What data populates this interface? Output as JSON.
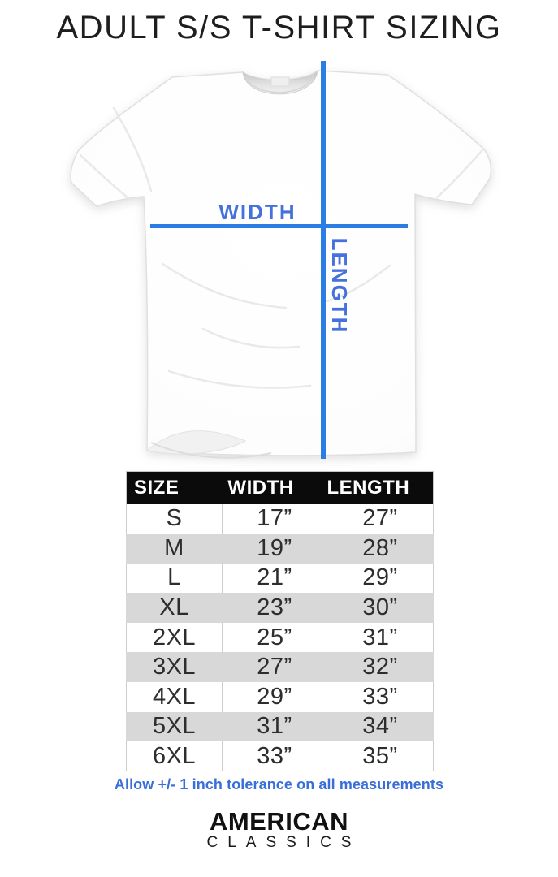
{
  "title": "ADULT S/S T-SHIRT SIZING",
  "diagram": {
    "width_label": "WIDTH",
    "length_label": "LENGTH"
  },
  "table": {
    "headers": [
      "SIZE",
      "WIDTH",
      "LENGTH"
    ],
    "rows": [
      [
        "S",
        "17”",
        "27”"
      ],
      [
        "M",
        "19”",
        "28”"
      ],
      [
        "L",
        "21”",
        "29”"
      ],
      [
        "XL",
        "23”",
        "30”"
      ],
      [
        "2XL",
        "25”",
        "31”"
      ],
      [
        "3XL",
        "27”",
        "32”"
      ],
      [
        "4XL",
        "29”",
        "33”"
      ],
      [
        "5XL",
        "31”",
        "34”"
      ],
      [
        "6XL",
        "33”",
        "35”"
      ]
    ]
  },
  "tolerance_note": "Allow +/- 1 inch tolerance on all measurements",
  "brand": {
    "name": "AMERICAN",
    "subname": "CLASSICS"
  },
  "colors": {
    "measure_line": "#2b7de4",
    "measure_label": "#4471dc",
    "tolerance_text": "#3a6fd8",
    "header_bg": "#0b0b0b",
    "header_text": "#ffffff",
    "row_alt_bg": "#d8d8d8",
    "title_text": "#1e1e1e"
  }
}
